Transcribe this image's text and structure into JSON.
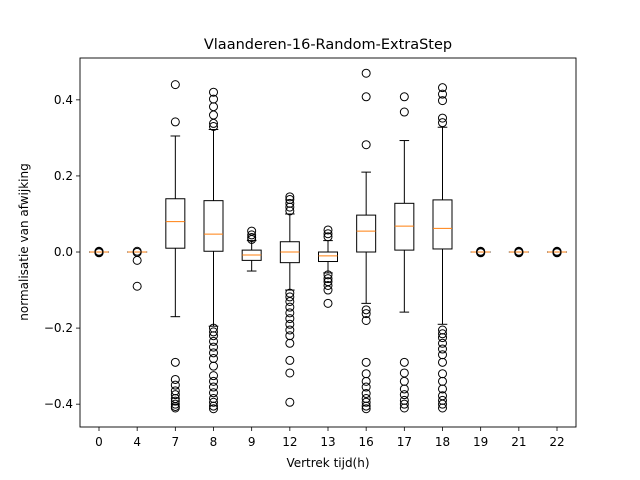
{
  "chart_data": {
    "type": "box",
    "title": "Vlaanderen-16-Random-ExtraStep",
    "xlabel": "Vertrek tijd(h)",
    "ylabel": "normalisatie van afwijking",
    "ylim": [
      -0.46,
      0.51
    ],
    "yticks": [
      -0.4,
      -0.2,
      0.0,
      0.2,
      0.4
    ],
    "ytick_labels": [
      "−0.4",
      "−0.2",
      "0.0",
      "0.2",
      "0.4"
    ],
    "grid": false,
    "colors": {
      "box": "#000000",
      "median": "#ff7f0e",
      "outlier": "#000000"
    },
    "categories": [
      "0",
      "4",
      "7",
      "8",
      "9",
      "12",
      "13",
      "16",
      "17",
      "18",
      "19",
      "21",
      "22"
    ],
    "boxes": [
      {
        "label": "0",
        "whislo": 0.0,
        "q1": 0.0,
        "med": 0.0,
        "q3": 0.0,
        "whishi": 0.0,
        "fliers": [
          0.001,
          -0.001,
          0.002,
          -0.002
        ]
      },
      {
        "label": "4",
        "whislo": 0.0,
        "q1": 0.0,
        "med": 0.0,
        "q3": 0.0,
        "whishi": 0.0,
        "fliers": [
          0.002,
          -0.001,
          -0.022,
          -0.09
        ]
      },
      {
        "label": "7",
        "whislo": -0.17,
        "q1": 0.01,
        "med": 0.08,
        "q3": 0.14,
        "whishi": 0.305,
        "fliers": [
          0.44,
          0.342,
          -0.29,
          -0.335,
          -0.35,
          -0.365,
          -0.375,
          -0.385,
          -0.392,
          -0.4,
          -0.406,
          -0.41
        ]
      },
      {
        "label": "8",
        "whislo": -0.195,
        "q1": 0.002,
        "med": 0.047,
        "q3": 0.135,
        "whishi": 0.322,
        "fliers": [
          0.42,
          0.402,
          0.382,
          0.36,
          0.338,
          0.33,
          -0.2,
          -0.21,
          -0.22,
          -0.235,
          -0.25,
          -0.265,
          -0.28,
          -0.3,
          -0.325,
          -0.34,
          -0.355,
          -0.37,
          -0.385,
          -0.395,
          -0.405,
          -0.412
        ]
      },
      {
        "label": "9",
        "whislo": -0.05,
        "q1": -0.022,
        "med": -0.008,
        "q3": 0.005,
        "whishi": 0.03,
        "fliers": [
          0.055,
          0.045,
          0.038,
          0.033
        ]
      },
      {
        "label": "12",
        "whislo": -0.1,
        "q1": -0.028,
        "med": 0.0,
        "q3": 0.027,
        "whishi": 0.1,
        "fliers": [
          0.145,
          0.138,
          0.128,
          0.118,
          0.108,
          -0.108,
          -0.118,
          -0.13,
          -0.145,
          -0.16,
          -0.175,
          -0.19,
          -0.205,
          -0.22,
          -0.24,
          -0.285,
          -0.318,
          -0.395
        ]
      },
      {
        "label": "13",
        "whislo": -0.055,
        "q1": -0.025,
        "med": -0.01,
        "q3": 0.0,
        "whishi": 0.03,
        "fliers": [
          0.058,
          0.048,
          0.04,
          -0.06,
          -0.07,
          -0.078,
          -0.088,
          -0.1,
          -0.135
        ]
      },
      {
        "label": "16",
        "whislo": -0.135,
        "q1": 0.0,
        "med": 0.055,
        "q3": 0.097,
        "whishi": 0.21,
        "fliers": [
          0.47,
          0.408,
          0.282,
          -0.152,
          -0.162,
          -0.18,
          -0.29,
          -0.32,
          -0.34,
          -0.355,
          -0.372,
          -0.385,
          -0.395,
          -0.405,
          -0.412
        ]
      },
      {
        "label": "17",
        "whislo": -0.158,
        "q1": 0.005,
        "med": 0.068,
        "q3": 0.128,
        "whishi": 0.293,
        "fliers": [
          0.408,
          0.368,
          -0.29,
          -0.318,
          -0.34,
          -0.36,
          -0.375,
          -0.39,
          -0.4,
          -0.41
        ]
      },
      {
        "label": "18",
        "whislo": -0.19,
        "q1": 0.008,
        "med": 0.062,
        "q3": 0.137,
        "whishi": 0.328,
        "fliers": [
          0.432,
          0.415,
          0.398,
          0.352,
          0.34,
          -0.205,
          -0.215,
          -0.225,
          -0.24,
          -0.255,
          -0.27,
          -0.29,
          -0.32,
          -0.34,
          -0.36,
          -0.378,
          -0.39,
          -0.4,
          -0.41
        ]
      },
      {
        "label": "19",
        "whislo": 0.0,
        "q1": 0.0,
        "med": 0.0,
        "q3": 0.0,
        "whishi": 0.0,
        "fliers": [
          0.001,
          -0.001,
          0.002,
          -0.002
        ]
      },
      {
        "label": "21",
        "whislo": 0.0,
        "q1": 0.0,
        "med": 0.0,
        "q3": 0.0,
        "whishi": 0.0,
        "fliers": [
          0.001,
          -0.001,
          0.002,
          -0.002
        ]
      },
      {
        "label": "22",
        "whislo": 0.0,
        "q1": 0.0,
        "med": 0.0,
        "q3": 0.0,
        "whishi": 0.0,
        "fliers": [
          0.001,
          -0.001,
          0.002,
          -0.002
        ]
      }
    ]
  }
}
